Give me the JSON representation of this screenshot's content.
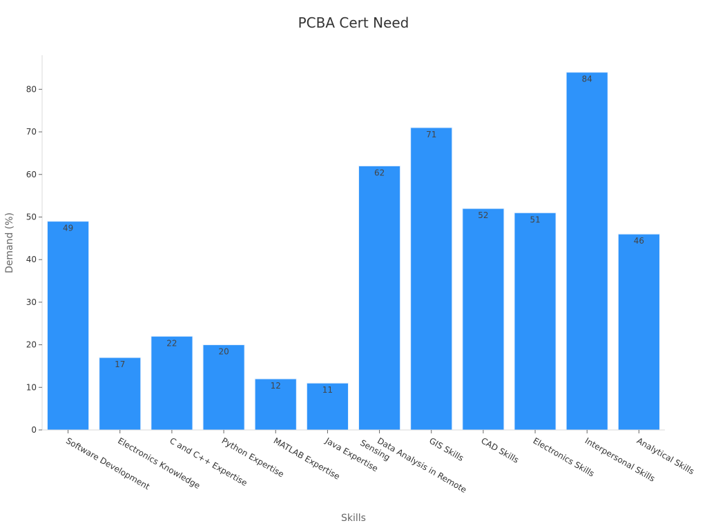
{
  "chart_data": {
    "type": "bar",
    "title": "PCBA Cert Need",
    "xlabel": "Skills",
    "ylabel": "Demand (%)",
    "ylim": [
      0,
      88
    ],
    "yticks": [
      0,
      10,
      20,
      30,
      40,
      50,
      60,
      70,
      80
    ],
    "grid": false,
    "legend": "none",
    "bar_color": "#2e93fa",
    "categories": [
      "Software Development",
      "Electronics Knowledge",
      "C and C++ Expertise",
      "Python Expertise",
      "MATLAB Expertise",
      "Java Expertise",
      "Data Analysis in Remote Sensing",
      "GIS Skills",
      "CAD Skills",
      "Electronics Skills",
      "Interpersonal Skills",
      "Analytical Skills"
    ],
    "values": [
      49,
      17,
      22,
      20,
      12,
      11,
      62,
      71,
      52,
      51,
      84,
      46
    ]
  }
}
